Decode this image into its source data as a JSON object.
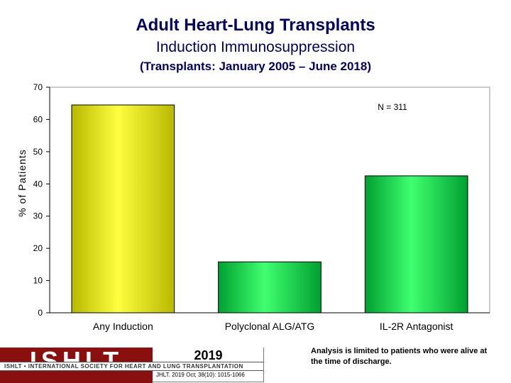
{
  "header": {
    "title": "Adult Heart-Lung Transplants",
    "subtitle": "Induction Immunosuppression",
    "period": "(Transplants: January 2005 – June 2018)"
  },
  "chart_data": {
    "type": "bar",
    "categories": [
      "Any Induction",
      "Polyclonal ALG/ATG",
      "IL-2R Antagonist"
    ],
    "values": [
      64.5,
      15.8,
      42.5
    ],
    "ylabel": "% of Patients",
    "xlabel": "",
    "ylim": [
      0,
      70
    ],
    "yticks": [
      0,
      10,
      20,
      30,
      40,
      50,
      60,
      70
    ],
    "annotation": "N = 311",
    "bar_colors": [
      "#e6e600",
      "#00c040",
      "#00c040"
    ],
    "grid": false,
    "legend": "none"
  },
  "footer": {
    "logo_text": "ISHLT",
    "logo_strip": "ISHLT • INTERNATIONAL SOCIETY FOR HEART AND LUNG TRANSPLANTATION",
    "year": "2019",
    "citation": "JHLT. 2019 Oct; 38(10): 1015-1066",
    "note": "Analysis is limited to patients who were alive at the time of discharge."
  }
}
